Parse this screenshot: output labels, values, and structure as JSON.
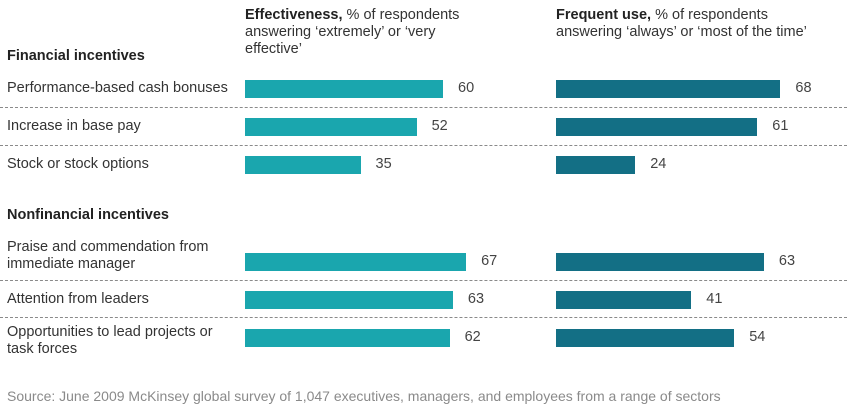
{
  "chart_data": {
    "type": "bar",
    "orientation": "horizontal",
    "columns": [
      {
        "title_bold": "Effectiveness,",
        "title_rest": " % of respondents answering ‘extremely’ or ‘very effective’",
        "color": "#1aa6ae"
      },
      {
        "title_bold": "Frequent use,",
        "title_rest": " % of respondents answering ‘always’ or ‘most of the time’",
        "color": "#136f85"
      }
    ],
    "groups": [
      {
        "name": "Financial incentives",
        "items": [
          {
            "label_lines": [
              "Performance-based cash bonuses"
            ],
            "values": [
              60,
              68
            ]
          },
          {
            "label_lines": [
              "Increase in base pay"
            ],
            "values": [
              52,
              61
            ]
          },
          {
            "label_lines": [
              "Stock or stock options"
            ],
            "values": [
              35,
              24
            ]
          }
        ]
      },
      {
        "name": "Nonfinancial incentives",
        "items": [
          {
            "label_lines": [
              "Praise and commendation from",
              "immediate manager"
            ],
            "values": [
              67,
              63
            ]
          },
          {
            "label_lines": [
              "Attention from leaders"
            ],
            "values": [
              63,
              41
            ]
          },
          {
            "label_lines": [
              "Opportunities to lead projects or",
              "task forces"
            ],
            "values": [
              62,
              54
            ]
          }
        ]
      }
    ],
    "source": "Source: June 2009 McKinsey global survey of 1,047 executives, managers, and employees from a range of sectors"
  }
}
